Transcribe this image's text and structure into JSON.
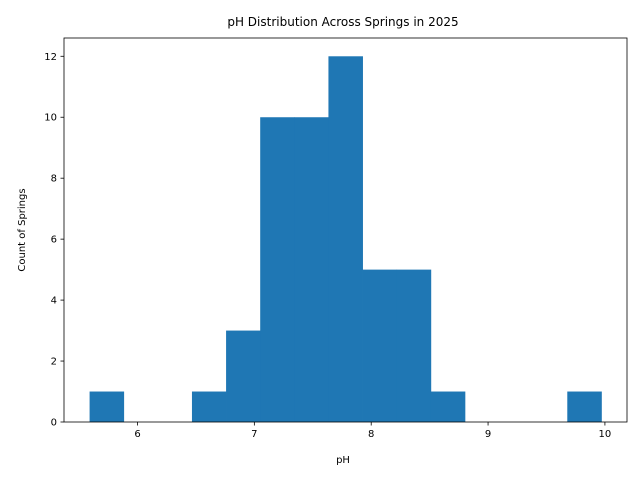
{
  "chart_data": {
    "type": "bar",
    "title": "pH Distribution Across Springs in 2025",
    "xlabel": "pH",
    "ylabel": "Count of Springs",
    "bin_edges": [
      5.59,
      5.882,
      6.174,
      6.466,
      6.758,
      7.05,
      7.342,
      7.634,
      7.926,
      8.218,
      8.51,
      8.802,
      9.094,
      9.386,
      9.678,
      9.97
    ],
    "values": [
      1,
      0,
      0,
      1,
      3,
      10,
      10,
      12,
      5,
      5,
      1,
      0,
      0,
      0,
      1
    ],
    "xlim": [
      5.371,
      10.189
    ],
    "ylim": [
      0,
      12.6
    ],
    "xticks": [
      6,
      7,
      8,
      9,
      10
    ],
    "yticks": [
      0,
      2,
      4,
      6,
      8,
      10,
      12
    ],
    "bar_color": "#1f77b4",
    "grid": false
  }
}
